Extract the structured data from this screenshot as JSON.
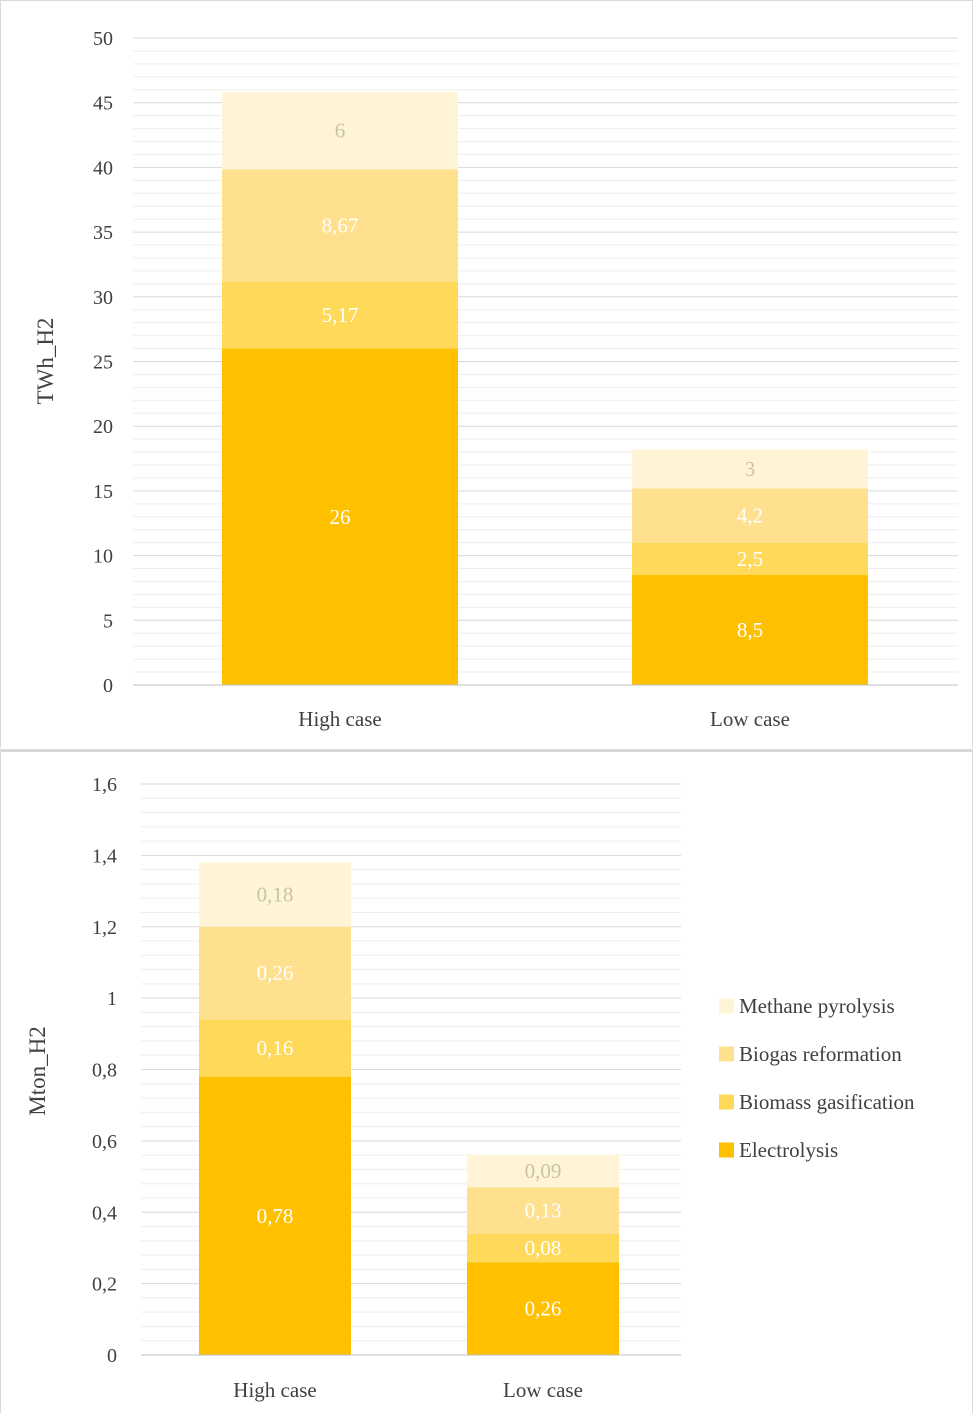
{
  "chart_data": [
    {
      "type": "bar",
      "stacked": true,
      "ylabel": "TWh_H2",
      "ylim": [
        0,
        50
      ],
      "yticks": [
        "0",
        "5",
        "10",
        "15",
        "20",
        "25",
        "30",
        "35",
        "40",
        "45",
        "50"
      ],
      "categories": [
        "High case",
        "Low case"
      ],
      "series": [
        {
          "name": "Electrolysis",
          "values": [
            26,
            8.5
          ],
          "labels": [
            "26",
            "8,5"
          ],
          "color": "#FFC000",
          "label_color": "#ffffff"
        },
        {
          "name": "Biomass gasification",
          "values": [
            5.17,
            2.5
          ],
          "labels": [
            "5,17",
            "2,5"
          ],
          "color": "#FFD95A",
          "label_color": "#ffffff"
        },
        {
          "name": "Biogas reformation",
          "values": [
            8.67,
            4.2
          ],
          "labels": [
            "8,67",
            "4,2"
          ],
          "color": "#FFE08E",
          "label_color": "#ffffff"
        },
        {
          "name": "Methane pyrolysis",
          "values": [
            6,
            3
          ],
          "labels": [
            "6",
            "3"
          ],
          "color": "#FFF5D6",
          "label_color": "#C9C4A6"
        }
      ],
      "grid": true,
      "legend": "none"
    },
    {
      "type": "bar",
      "stacked": true,
      "ylabel": "Mton_H2",
      "ylim": [
        0,
        1.6
      ],
      "yticks": [
        "0",
        "0,2",
        "0,4",
        "0,6",
        "0,8",
        "1",
        "1,2",
        "1,4",
        "1,6"
      ],
      "categories": [
        "High case",
        "Low case"
      ],
      "series": [
        {
          "name": "Electrolysis",
          "values": [
            0.78,
            0.26
          ],
          "labels": [
            "0,78",
            "0,26"
          ],
          "color": "#FFC000",
          "label_color": "#ffffff"
        },
        {
          "name": "Biomass gasification",
          "values": [
            0.16,
            0.08
          ],
          "labels": [
            "0,16",
            "0,08"
          ],
          "color": "#FFD95A",
          "label_color": "#ffffff"
        },
        {
          "name": "Biogas reformation",
          "values": [
            0.26,
            0.13
          ],
          "labels": [
            "0,26",
            "0,13"
          ],
          "color": "#FFE08E",
          "label_color": "#ffffff"
        },
        {
          "name": "Methane pyrolysis",
          "values": [
            0.18,
            0.09
          ],
          "labels": [
            "0,18",
            "0,09"
          ],
          "color": "#FFF5D6",
          "label_color": "#C9C4A6"
        }
      ],
      "grid": true,
      "legend": "right",
      "legend_order": [
        "Methane pyrolysis",
        "Biogas reformation",
        "Biomass gasification",
        "Electrolysis"
      ]
    }
  ]
}
